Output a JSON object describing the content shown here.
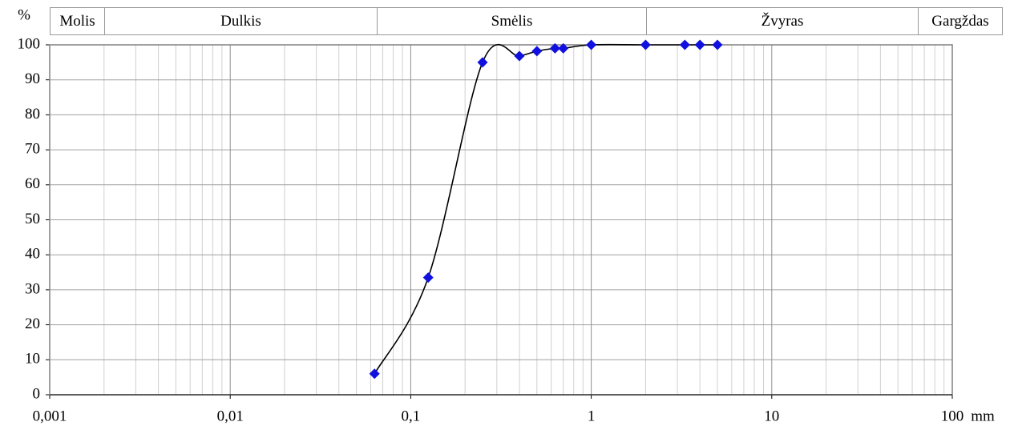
{
  "chart_data": {
    "type": "line",
    "classes": [
      "Molis",
      "Dulkis",
      "Smėlis",
      "Žvyras",
      "Gargždas"
    ],
    "y_label": "%",
    "x_label": "mm",
    "x": [
      0.063,
      0.125,
      0.25,
      0.4,
      0.5,
      0.63,
      0.7,
      1,
      2,
      3.3,
      4,
      5
    ],
    "values": [
      6,
      33.5,
      95,
      96.8,
      98.2,
      99,
      99,
      100,
      100,
      100,
      100,
      100
    ],
    "color": "#1010e0",
    "line_color": "#000000",
    "marker": "diamond",
    "smooth": true,
    "xscale": "log",
    "xlim": [
      0.001,
      100
    ],
    "xticks": [
      {
        "value": 0.001,
        "label": "0,001"
      },
      {
        "value": 0.01,
        "label": "0,01"
      },
      {
        "value": 0.1,
        "label": "0,1"
      },
      1,
      10,
      100
    ],
    "ylim": [
      0,
      100
    ],
    "yticks": [
      0,
      10,
      20,
      30,
      40,
      50,
      60,
      70,
      80,
      90,
      100
    ],
    "grid": true,
    "minor_grid": true
  }
}
